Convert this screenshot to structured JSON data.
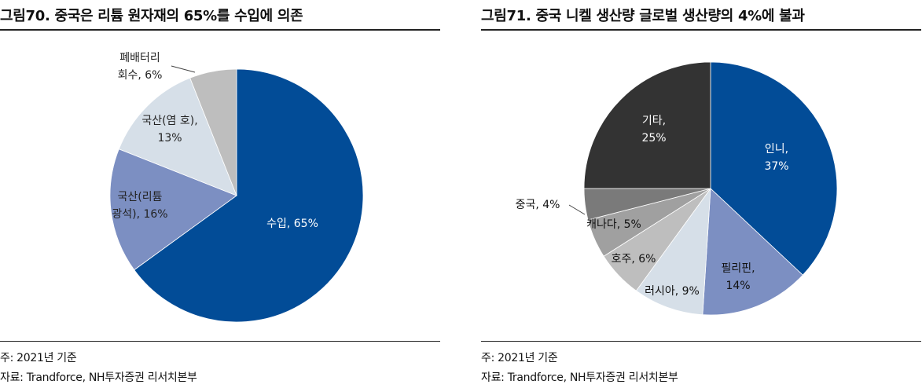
{
  "charts": [
    {
      "title": "그림70. 중국은 리튬 원자재의 65%를 수입에 의존",
      "note": "주: 2021년 기준",
      "source": "자료: Trandforce, NH투자증권 리서치본부"
    },
    {
      "title": "그림71. 중국 니켈 생산량 글로벌 생산량의 4%에 불과",
      "note": "주: 2021년 기준",
      "source": "자료: Trandforce, NH투자증권 리서치본부"
    }
  ],
  "chart_data": [
    {
      "type": "pie",
      "title": "그림70. 중국은 리튬 원자재의 65%를 수입에 의존",
      "slices": [
        {
          "label": "수입",
          "value": 65,
          "display": "수입, 65%",
          "color": "#024C97"
        },
        {
          "label": "국산(리튬 광석)",
          "value": 16,
          "display_lines": [
            "국산(리튬",
            "광석), 16%"
          ],
          "color": "#7C8FC2"
        },
        {
          "label": "국산(염호)",
          "value": 13,
          "display_lines": [
            "국산(염 호),",
            "13%"
          ],
          "color": "#D6DFE8"
        },
        {
          "label": "폐배터리 회수",
          "value": 6,
          "display_lines": [
            "폐배터리",
            "회수, 6%"
          ],
          "color": "#BEBEBE"
        }
      ]
    },
    {
      "type": "pie",
      "title": "그림71. 중국 니켈 생산량 글로벌 생산량의 4%에 불과",
      "slices": [
        {
          "label": "인니",
          "value": 37,
          "display_lines": [
            "인니,",
            "37%"
          ],
          "color": "#024C97"
        },
        {
          "label": "필리핀",
          "value": 14,
          "display_lines": [
            "필리핀,",
            "14%"
          ],
          "color": "#7C8FC2"
        },
        {
          "label": "러시아",
          "value": 9,
          "display_lines": [
            "러시아, 9%"
          ],
          "color": "#D6DFE8"
        },
        {
          "label": "호주",
          "value": 6,
          "display_lines": [
            "호주, 6%"
          ],
          "color": "#BEBEBE"
        },
        {
          "label": "캐나다",
          "value": 5,
          "display_lines": [
            "캐나다, 5%"
          ],
          "color": "#A0A0A0"
        },
        {
          "label": "중국",
          "value": 4,
          "display_lines": [
            "중국, 4%"
          ],
          "color": "#7A7A7A"
        },
        {
          "label": "기타",
          "value": 25,
          "display_lines": [
            "기타,",
            "25%"
          ],
          "color": "#333333"
        }
      ]
    }
  ]
}
